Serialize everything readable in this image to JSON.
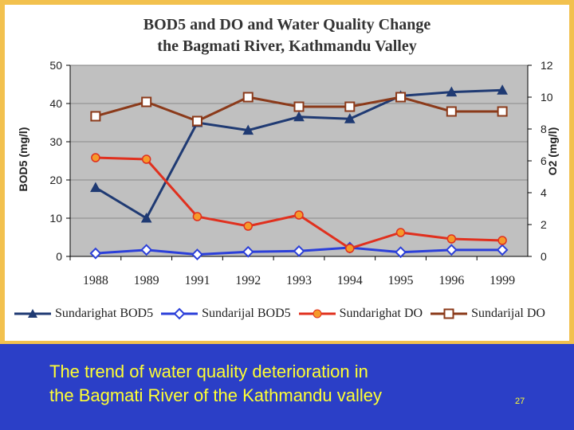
{
  "slide": {
    "caption_line1": "The trend of water quality deterioration in",
    "caption_line2": "the Bagmati River of the Kathmandu valley",
    "page_number": "27",
    "background_color": "#2b3fc7",
    "frame_color": "#f2c14e",
    "caption_color": "#ffff33"
  },
  "chart_data": {
    "type": "line",
    "title_line1": "BOD5 and DO and Water Quality Change",
    "title_line2": "the Bagmati River, Kathmandu Valley",
    "categories": [
      "1988",
      "1989",
      "1991",
      "1992",
      "1993",
      "1994",
      "1995",
      "1996",
      "1999"
    ],
    "ylabel": "BOD5 (mg/l)",
    "y2label": "O2 (mg/l)",
    "ylim": [
      0,
      50
    ],
    "y2lim": [
      0,
      12
    ],
    "yticks": [
      "0",
      "10",
      "20",
      "30",
      "40",
      "50"
    ],
    "y2ticks": [
      "0",
      "2",
      "4",
      "6",
      "8",
      "10",
      "12"
    ],
    "plot_background": "#c0c0c0",
    "grid": "horizontal",
    "legend_position": "bottom",
    "series": [
      {
        "name": "Sundarighat BOD5",
        "axis": "left",
        "color": "#1f3a73",
        "marker": "triangle",
        "values": [
          18,
          10,
          35,
          33,
          36.5,
          36,
          42,
          43,
          43.5
        ]
      },
      {
        "name": "Sundarijal BOD5",
        "axis": "left",
        "color": "#2b3fd9",
        "marker": "diamond",
        "values": [
          0.8,
          1.7,
          0.5,
          1.2,
          1.4,
          2.3,
          1.1,
          1.7,
          1.7
        ]
      },
      {
        "name": "Sundarighat DO",
        "axis": "right",
        "color": "#e0301e",
        "marker": "circle",
        "values": [
          6.2,
          6.1,
          2.5,
          1.9,
          2.6,
          0.5,
          1.5,
          1.1,
          1.0
        ]
      },
      {
        "name": "Sundarijal DO",
        "axis": "right",
        "color": "#8b3a1a",
        "marker": "square",
        "values": [
          8.8,
          9.7,
          8.5,
          10,
          9.4,
          9.4,
          10,
          9.1,
          9.1
        ]
      }
    ]
  }
}
